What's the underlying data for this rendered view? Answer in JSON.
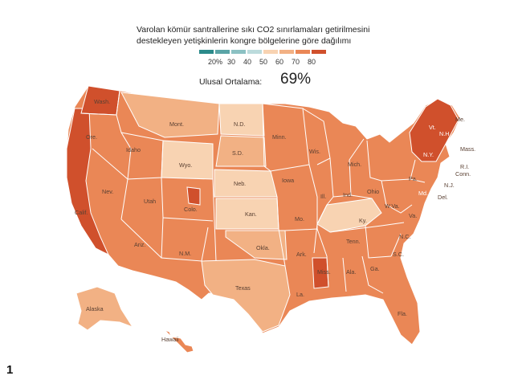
{
  "title": "Varolan kömür santrallerine sıkı CO2 sınırlamaları getirilmesini destekleyen yetişkinlerin kongre bölgelerine göre dağılımı",
  "legend": {
    "swatches": [
      {
        "label": "",
        "color": "#2b8a8a"
      },
      {
        "label": "20%",
        "color": "#5aa4a6"
      },
      {
        "label": "30",
        "color": "#8cc1c3"
      },
      {
        "label": "40",
        "color": "#bcdbdc"
      },
      {
        "label": "50",
        "color": "#f8d3b2"
      },
      {
        "label": "60",
        "color": "#f2b184"
      },
      {
        "label": "70",
        "color": "#ea8756"
      },
      {
        "label": "80",
        "color": "#d0502c"
      }
    ]
  },
  "national_average": {
    "label": "Ulusal Ortalama:",
    "value": "69%"
  },
  "state_labels": [
    "Wash.",
    "Ore.",
    "Calif.",
    "Nev.",
    "Idaho",
    "Mont.",
    "Wyo.",
    "Utah",
    "Ariz.",
    "Colo.",
    "N.M.",
    "N.D.",
    "S.D.",
    "Neb.",
    "Kan.",
    "Okla.",
    "Texas",
    "Minn.",
    "Iowa",
    "Mo.",
    "Ark.",
    "La.",
    "Wis.",
    "Ill.",
    "Mich.",
    "Ind.",
    "Ohio",
    "Ky.",
    "Tenn.",
    "Miss.",
    "Ala.",
    "Ga.",
    "Fla.",
    "S.C.",
    "N.C.",
    "Va.",
    "W.Va.",
    "Pa.",
    "N.Y.",
    "Vt.",
    "N.H.",
    "Me.",
    "Mass.",
    "R.I.",
    "Conn.",
    "N.J.",
    "Del.",
    "Md.",
    "Alaska",
    "Hawaii"
  ],
  "figure_number": "1"
}
